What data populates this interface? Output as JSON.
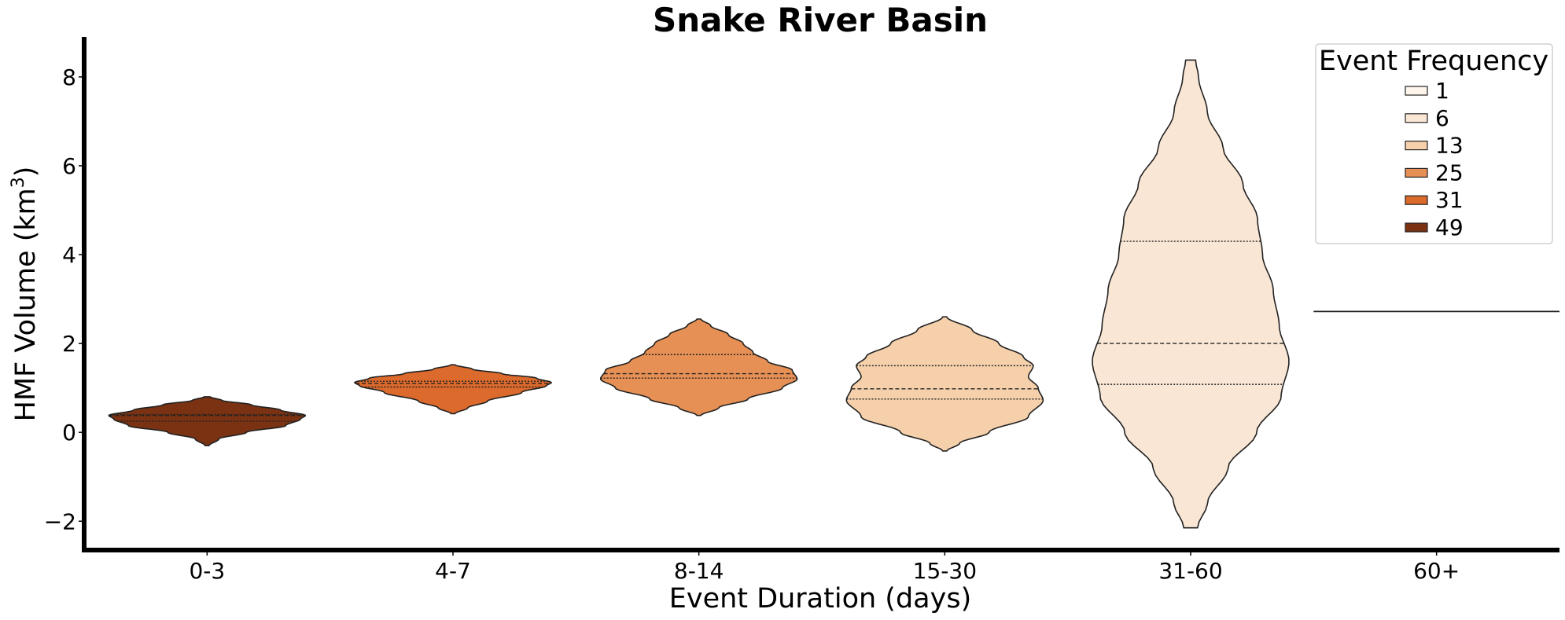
{
  "chart_data": {
    "type": "violin",
    "title": "Snake River Basin",
    "xlabel": "Event Duration (days)",
    "ylabel_main": "HMF Volume (km",
    "ylabel_sup": "3",
    "ylabel_close": ")",
    "ylim": [
      -2.65,
      8.9
    ],
    "yticks": [
      -2,
      0,
      2,
      4,
      6,
      8
    ],
    "ytick_labels": [
      "−2",
      "0",
      "2",
      "4",
      "6",
      "8"
    ],
    "categories": [
      "0-3",
      "4-7",
      "8-14",
      "15-30",
      "31-60",
      "60+"
    ],
    "legend": {
      "title": "Event Frequency",
      "position": "top-right",
      "entries": [
        {
          "label": "1",
          "color": "#fff5eb"
        },
        {
          "label": "6",
          "color": "#f9e6d4"
        },
        {
          "label": "13",
          "color": "#f5d0ab"
        },
        {
          "label": "25",
          "color": "#e69055"
        },
        {
          "label": "31",
          "color": "#dc6a2c"
        },
        {
          "label": "49",
          "color": "#7a3212"
        }
      ]
    },
    "violins": [
      {
        "category": "0-3",
        "frequency": 49,
        "color": "#7a3212",
        "profile": [
          [
            -0.3,
            0.02
          ],
          [
            -0.15,
            0.12
          ],
          [
            0.0,
            0.4
          ],
          [
            0.15,
            0.8
          ],
          [
            0.3,
            0.95
          ],
          [
            0.38,
            1.0
          ],
          [
            0.5,
            0.75
          ],
          [
            0.62,
            0.45
          ],
          [
            0.72,
            0.15
          ],
          [
            0.8,
            0.03
          ]
        ],
        "quartiles": [
          0.25,
          0.38,
          0.4
        ]
      },
      {
        "category": "4-7",
        "frequency": 31,
        "color": "#dc6a2c",
        "profile": [
          [
            0.42,
            0.02
          ],
          [
            0.55,
            0.15
          ],
          [
            0.7,
            0.35
          ],
          [
            0.9,
            0.7
          ],
          [
            1.05,
            0.95
          ],
          [
            1.12,
            1.0
          ],
          [
            1.22,
            0.85
          ],
          [
            1.32,
            0.5
          ],
          [
            1.42,
            0.2
          ],
          [
            1.52,
            0.02
          ]
        ],
        "quartiles": [
          1.02,
          1.1,
          1.15
        ]
      },
      {
        "category": "8-14",
        "frequency": 25,
        "color": "#e69055",
        "profile": [
          [
            0.38,
            0.02
          ],
          [
            0.55,
            0.2
          ],
          [
            0.75,
            0.5
          ],
          [
            1.0,
            0.85
          ],
          [
            1.2,
            1.0
          ],
          [
            1.4,
            0.95
          ],
          [
            1.6,
            0.7
          ],
          [
            1.8,
            0.55
          ],
          [
            2.0,
            0.45
          ],
          [
            2.2,
            0.3
          ],
          [
            2.4,
            0.12
          ],
          [
            2.55,
            0.02
          ]
        ],
        "quartiles": [
          1.22,
          1.32,
          1.75
        ]
      },
      {
        "category": "15-30",
        "frequency": 13,
        "color": "#f5d0ab",
        "profile": [
          [
            -0.42,
            0.02
          ],
          [
            -0.25,
            0.15
          ],
          [
            0.0,
            0.45
          ],
          [
            0.35,
            0.85
          ],
          [
            0.72,
            1.0
          ],
          [
            1.0,
            0.95
          ],
          [
            1.25,
            0.85
          ],
          [
            1.5,
            0.9
          ],
          [
            1.7,
            0.8
          ],
          [
            2.0,
            0.55
          ],
          [
            2.3,
            0.28
          ],
          [
            2.6,
            0.02
          ]
        ],
        "quartiles": [
          0.75,
          0.98,
          1.5
        ]
      },
      {
        "category": "31-60",
        "frequency": 6,
        "color": "#f9e6d4",
        "profile": [
          [
            -2.15,
            0.07
          ],
          [
            -1.6,
            0.17
          ],
          [
            -0.8,
            0.38
          ],
          [
            0.0,
            0.67
          ],
          [
            0.8,
            0.92
          ],
          [
            1.6,
            1.0
          ],
          [
            2.4,
            0.9
          ],
          [
            3.2,
            0.84
          ],
          [
            4.0,
            0.73
          ],
          [
            4.8,
            0.68
          ],
          [
            5.6,
            0.53
          ],
          [
            6.4,
            0.33
          ],
          [
            7.2,
            0.17
          ],
          [
            8.0,
            0.08
          ],
          [
            8.38,
            0.05
          ]
        ],
        "quartiles": [
          1.08,
          2.0,
          4.3
        ]
      },
      {
        "category": "60+",
        "frequency": 1,
        "color": "#fff5eb",
        "value": 2.72
      }
    ]
  }
}
